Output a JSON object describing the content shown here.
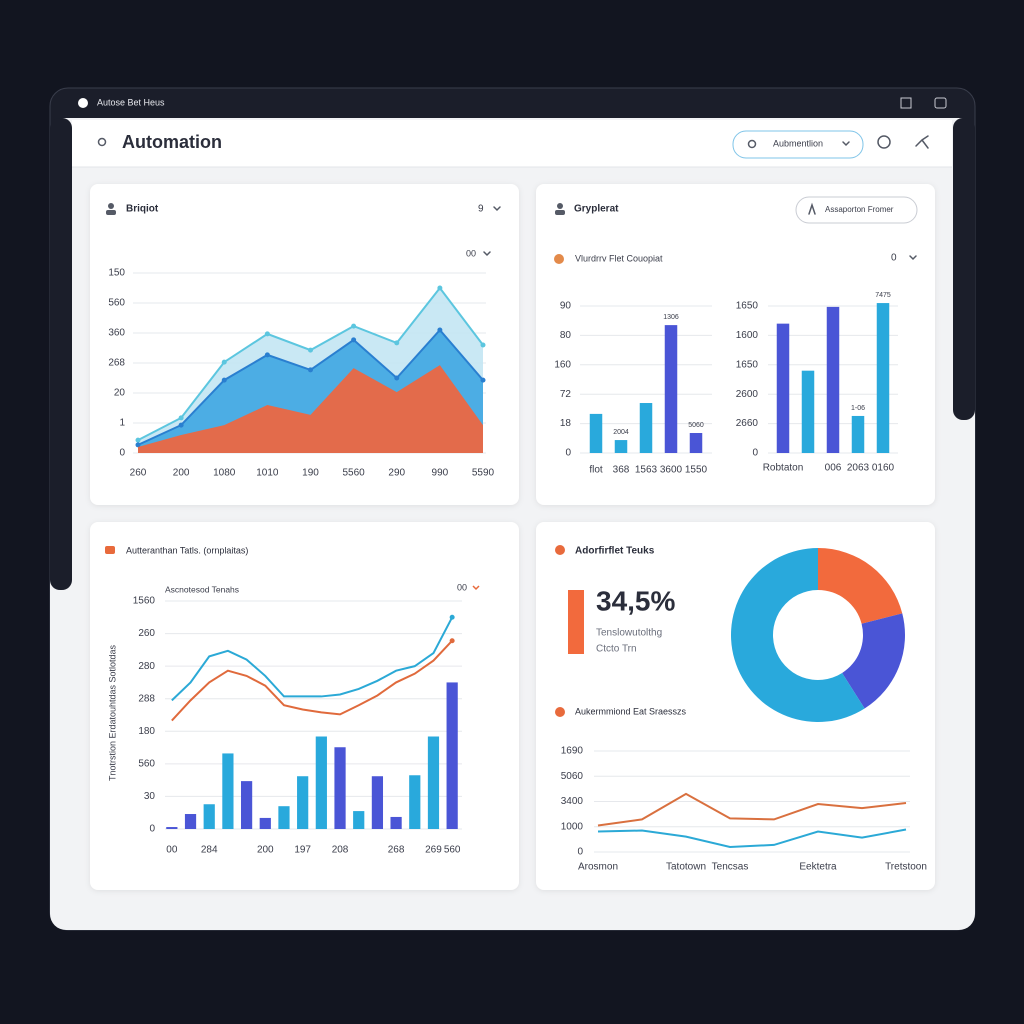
{
  "window": {
    "title": "Autose Bet Heus"
  },
  "header": {
    "title": "Automation",
    "search": "Aubmentlion"
  },
  "cards": [
    {
      "title": "Briqiot",
      "control": "9"
    },
    {
      "title": "Gryplerat",
      "button": "Assaporton Fromer",
      "subtitle": "Vlurdrrv Flet Couopiat",
      "control": "0"
    },
    {
      "title": "Autteranthan Tatls. (ornplaitas)"
    },
    {
      "title": "Adorfirflet Teuks",
      "kpi": "34,5%",
      "kpi_caption": [
        "Tenslowutolthg",
        "Ctcto Trn"
      ]
    }
  ],
  "chart_data": [
    {
      "type": "area",
      "control": "00",
      "categories": [
        "260",
        "200",
        "1080",
        "1010",
        "190",
        "5560",
        "290",
        "990",
        "5590"
      ],
      "ylim": [
        0,
        6
      ],
      "yticks": [
        0,
        1,
        {
          "value": 2,
          "label": "20"
        },
        {
          "value": 3,
          "label": "268"
        },
        {
          "value": 4,
          "label": "360"
        },
        {
          "value": 5,
          "label": "560"
        },
        {
          "value": 6,
          "label": "150"
        }
      ],
      "grid": true,
      "series": [
        {
          "color": "#c3e6f3",
          "line_color": "#5cc6df",
          "values": [
            0.43,
            1.17,
            3.03,
            3.97,
            3.43,
            4.23,
            3.67,
            5.5,
            3.6
          ]
        },
        {
          "color": "#3ea6e2",
          "line_color": "#2a7fd0",
          "values": [
            0.27,
            0.93,
            2.43,
            3.27,
            2.77,
            3.77,
            2.5,
            4.1,
            2.43
          ]
        },
        {
          "color": "#f4643a",
          "values": [
            0.2,
            0.6,
            0.93,
            1.6,
            1.27,
            2.83,
            2.03,
            2.93,
            0.93
          ]
        }
      ]
    },
    {
      "type": "bar",
      "categories": [
        "flot",
        "368",
        "1563",
        "3600",
        "1550"
      ],
      "values": [
        1.33,
        0.44,
        1.7,
        4.35,
        0.68
      ],
      "colors": [
        "#29a9dc",
        "#29a9dc",
        "#29a9dc",
        "#4a55d6",
        "#4a55d6"
      ],
      "ylim": [
        0,
        5
      ],
      "yticks": [
        0,
        {
          "value": 1,
          "label": "18"
        },
        {
          "value": 2,
          "label": "72"
        },
        {
          "value": 3,
          "label": "160"
        },
        {
          "value": 4,
          "label": "80"
        },
        {
          "value": 5,
          "label": "90"
        }
      ],
      "grid": true,
      "annotations": [
        "2004",
        "1306",
        "5060"
      ]
    },
    {
      "type": "bar",
      "categories": [
        "Robtaton",
        null,
        "006",
        "2063",
        "0160"
      ],
      "values": [
        4.4,
        2.8,
        4.97,
        1.26,
        5.1
      ],
      "colors": [
        "#4a55d6",
        "#29a9dc",
        "#4a55d6",
        "#29a9dc",
        "#29a9dc"
      ],
      "ylim": [
        0,
        5
      ],
      "yticks": [
        0,
        {
          "value": 1,
          "label": "2660"
        },
        {
          "value": 2,
          "label": "2600"
        },
        {
          "value": 3,
          "label": "1650"
        },
        {
          "value": 4,
          "label": "1600"
        },
        {
          "value": 5,
          "label": "1650"
        }
      ],
      "grid": true,
      "annotations": [
        "7475",
        "1-06"
      ]
    },
    {
      "type": "combo",
      "subtitle": "Ascnotesod Tenahs",
      "control": "00",
      "ylabel": "Tnotrstion Erdatouhtdas Sotlotdas",
      "categories": [
        "00",
        null,
        "284",
        null,
        null,
        "200",
        null,
        "197",
        null,
        "208",
        null,
        null,
        "268",
        null,
        "269",
        "560"
      ],
      "ylim": [
        0,
        7
      ],
      "yticks": [
        0,
        {
          "value": 1,
          "label": "30"
        },
        {
          "value": 2,
          "label": "560"
        },
        {
          "value": 3,
          "label": "180"
        },
        {
          "value": 4,
          "label": "288"
        },
        {
          "value": 5,
          "label": "280"
        },
        {
          "value": 6,
          "label": "260"
        },
        {
          "value": 7,
          "label": "1560"
        }
      ],
      "grid": true,
      "series": [
        {
          "type": "bar",
          "colors": [
            "#4a55d6",
            "#4a55d6",
            "#29a9dc",
            "#29a9dc",
            "#4a55d6",
            "#4a55d6",
            "#29a9dc",
            "#29a9dc",
            "#29a9dc",
            "#4a55d6",
            "#29a9dc",
            "#4a55d6",
            "#4a55d6",
            "#29a9dc",
            "#29a9dc",
            "#4a55d6"
          ],
          "values": [
            0.06,
            0.46,
            0.76,
            2.32,
            1.47,
            0.34,
            0.7,
            1.62,
            2.84,
            2.51,
            0.55,
            1.62,
            0.37,
            1.65,
            2.84,
            4.5
          ]
        },
        {
          "type": "line",
          "color": "#2ba9d6",
          "values": [
            3.95,
            4.5,
            5.3,
            5.47,
            5.2,
            4.7,
            4.07,
            4.07,
            4.07,
            4.13,
            4.3,
            4.55,
            4.86,
            5.0,
            5.4,
            6.5
          ]
        },
        {
          "type": "line",
          "color": "#e06a3c",
          "values": [
            3.33,
            3.95,
            4.5,
            4.86,
            4.7,
            4.4,
            3.8,
            3.67,
            3.58,
            3.52,
            3.8,
            4.1,
            4.5,
            4.77,
            5.17,
            5.78
          ]
        }
      ]
    },
    {
      "type": "pie",
      "values": [
        21,
        20,
        59
      ],
      "colors": [
        "#f26a3d",
        "#4a55d6",
        "#29a9dc"
      ]
    },
    {
      "type": "line",
      "title": "Aukermmiond Eat Sraesszs",
      "categories": [
        "Arosmon",
        null,
        "Tatotown",
        "Tencsas",
        null,
        "Eektetra",
        null,
        "Tretstoon"
      ],
      "ylim": [
        0,
        4
      ],
      "yticks": [
        0,
        {
          "value": 1,
          "label": "1000"
        },
        {
          "value": 2,
          "label": "3400"
        },
        {
          "value": 3,
          "label": "5060"
        },
        {
          "value": 4,
          "label": "1690"
        }
      ],
      "grid": true,
      "series": [
        {
          "color": "#d9703f",
          "values": [
            1.05,
            1.29,
            2.3,
            1.33,
            1.29,
            1.9,
            1.74,
            1.94
          ]
        },
        {
          "color": "#2ba9d6",
          "values": [
            0.81,
            0.85,
            0.61,
            0.2,
            0.28,
            0.81,
            0.57,
            0.89
          ]
        }
      ]
    }
  ]
}
